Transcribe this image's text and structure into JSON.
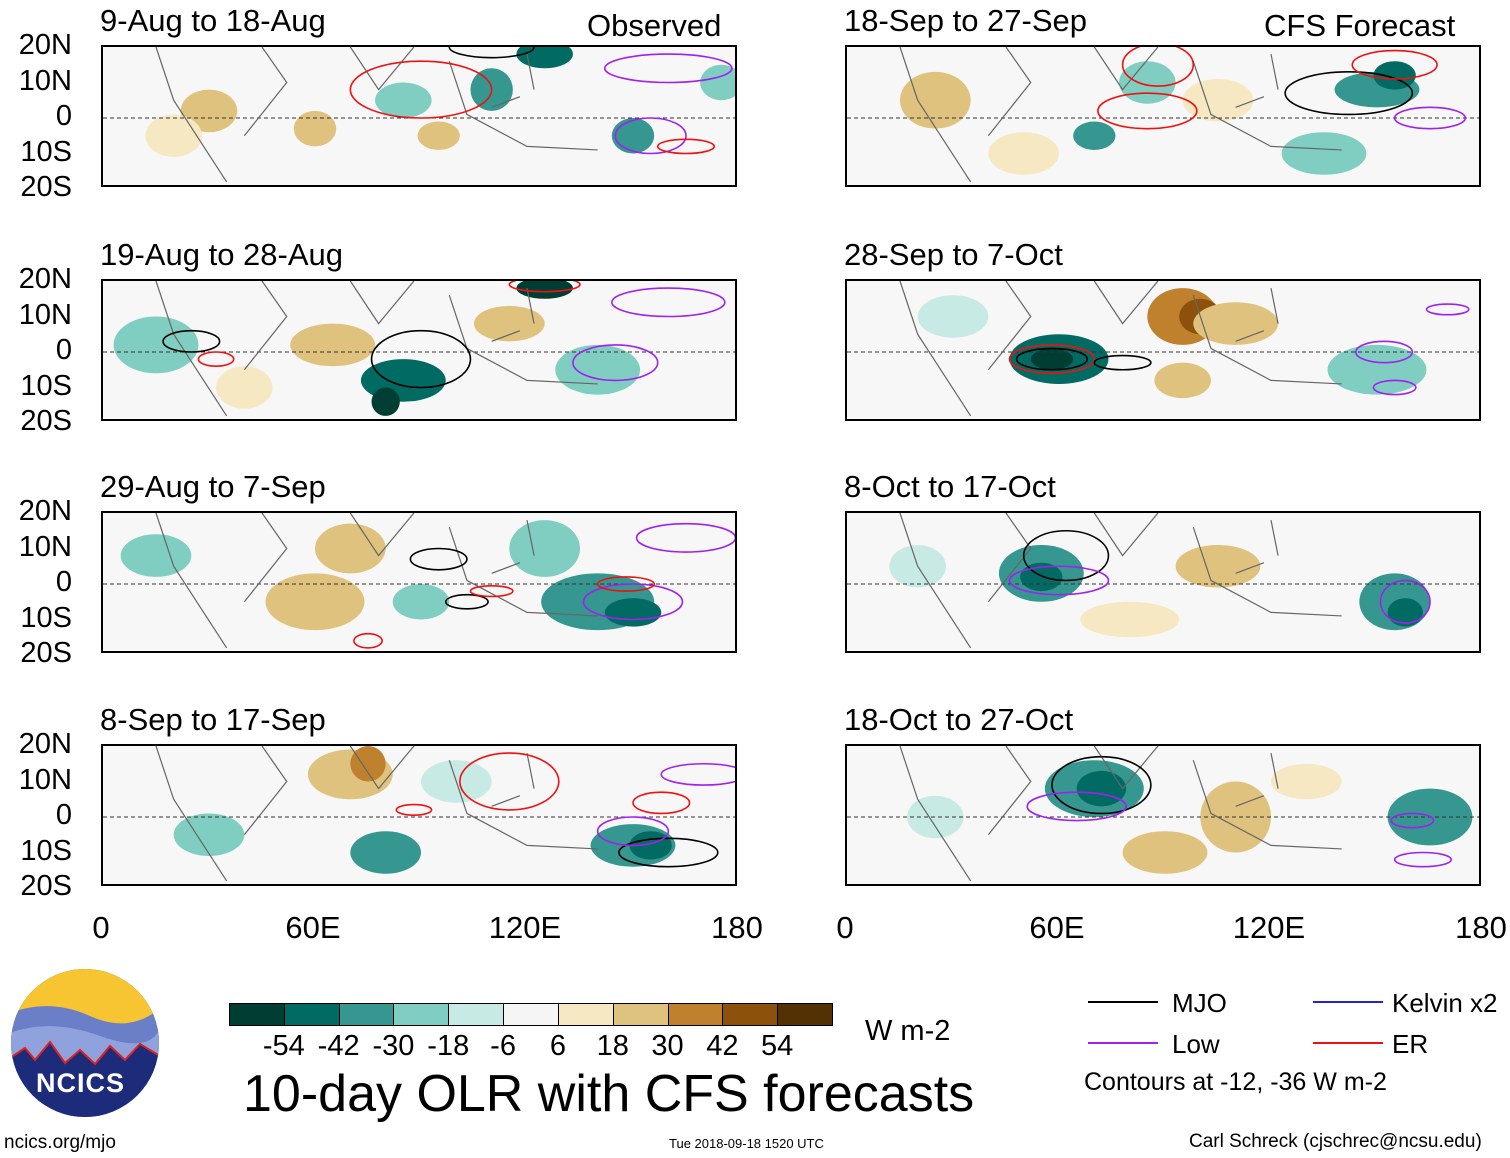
{
  "header": {
    "observed_label": "Observed",
    "forecast_label": "CFS Forecast"
  },
  "panels": [
    {
      "title": "9-Aug to 18-Aug",
      "group": "observed",
      "olr": [
        [
          30,
          2,
          8,
          6,
          24
        ],
        [
          60,
          -3,
          6,
          5,
          30
        ],
        [
          85,
          5,
          8,
          5,
          -18
        ],
        [
          110,
          8,
          6,
          6,
          -30
        ],
        [
          125,
          18,
          8,
          4,
          -42
        ],
        [
          95,
          -5,
          6,
          4,
          24
        ],
        [
          150,
          -5,
          6,
          5,
          -30
        ],
        [
          175,
          10,
          6,
          5,
          -18
        ],
        [
          20,
          -5,
          8,
          6,
          18
        ]
      ],
      "contours": [
        [
          90,
          8,
          20,
          8,
          "er"
        ],
        [
          155,
          -5,
          10,
          5,
          "low"
        ],
        [
          110,
          20,
          12,
          3,
          "mjo"
        ],
        [
          160,
          14,
          18,
          4,
          "low"
        ],
        [
          165,
          -8,
          8,
          2,
          "er"
        ]
      ]
    },
    {
      "title": "18-Sep to 27-Sep",
      "group": "forecast",
      "olr": [
        [
          25,
          5,
          10,
          8,
          24
        ],
        [
          70,
          -5,
          6,
          4,
          -30
        ],
        [
          85,
          10,
          8,
          6,
          -18
        ],
        [
          150,
          8,
          12,
          5,
          -30
        ],
        [
          155,
          12,
          6,
          4,
          -42
        ],
        [
          105,
          5,
          10,
          6,
          18
        ],
        [
          135,
          -10,
          12,
          6,
          -18
        ],
        [
          50,
          -10,
          10,
          6,
          12
        ]
      ],
      "contours": [
        [
          88,
          15,
          10,
          6,
          "er"
        ],
        [
          85,
          2,
          14,
          5,
          "er"
        ],
        [
          142,
          7,
          18,
          6,
          "mjo"
        ],
        [
          165,
          0,
          10,
          3,
          "low"
        ],
        [
          155,
          15,
          12,
          4,
          "er"
        ]
      ]
    },
    {
      "title": "19-Aug to 28-Aug",
      "group": "observed",
      "olr": [
        [
          15,
          2,
          12,
          8,
          -18
        ],
        [
          85,
          -8,
          12,
          6,
          -42
        ],
        [
          80,
          -14,
          4,
          4,
          -54
        ],
        [
          65,
          2,
          12,
          6,
          24
        ],
        [
          115,
          8,
          10,
          5,
          30
        ],
        [
          140,
          -5,
          12,
          7,
          -18
        ],
        [
          125,
          18,
          8,
          3,
          -54
        ],
        [
          40,
          -10,
          8,
          6,
          18
        ]
      ],
      "contours": [
        [
          25,
          3,
          8,
          3,
          "mjo"
        ],
        [
          90,
          -2,
          14,
          8,
          "mjo"
        ],
        [
          145,
          -3,
          12,
          5,
          "low"
        ],
        [
          160,
          14,
          16,
          4,
          "low"
        ],
        [
          125,
          19,
          10,
          2,
          "er"
        ],
        [
          32,
          -2,
          5,
          2,
          "er"
        ]
      ]
    },
    {
      "title": "28-Sep to 7-Oct",
      "group": "forecast",
      "olr": [
        [
          60,
          -2,
          14,
          7,
          -42
        ],
        [
          58,
          -2,
          6,
          3,
          -54
        ],
        [
          95,
          10,
          10,
          8,
          42
        ],
        [
          100,
          10,
          6,
          5,
          54
        ],
        [
          110,
          8,
          12,
          6,
          30
        ],
        [
          95,
          -8,
          8,
          5,
          24
        ],
        [
          150,
          -5,
          14,
          7,
          -18
        ],
        [
          30,
          10,
          10,
          6,
          -12
        ]
      ],
      "contours": [
        [
          58,
          -2,
          12,
          4,
          "er"
        ],
        [
          58,
          -2,
          10,
          3,
          "mjo"
        ],
        [
          78,
          -3,
          8,
          2,
          "mjo"
        ],
        [
          152,
          0,
          8,
          3,
          "low"
        ],
        [
          155,
          -10,
          6,
          2,
          "low"
        ],
        [
          170,
          12,
          6,
          1.5,
          "low"
        ]
      ]
    },
    {
      "title": "29-Aug to 7-Sep",
      "group": "observed",
      "olr": [
        [
          70,
          10,
          10,
          7,
          30
        ],
        [
          60,
          -5,
          14,
          8,
          24
        ],
        [
          90,
          -5,
          8,
          5,
          -18
        ],
        [
          140,
          -5,
          16,
          8,
          -30
        ],
        [
          150,
          -8,
          8,
          4,
          -42
        ],
        [
          15,
          8,
          10,
          6,
          -18
        ],
        [
          125,
          10,
          10,
          8,
          -18
        ]
      ],
      "contours": [
        [
          95,
          7,
          8,
          3,
          "mjo"
        ],
        [
          103,
          -5,
          6,
          2,
          "mjo"
        ],
        [
          150,
          -5,
          14,
          5,
          "low"
        ],
        [
          165,
          13,
          14,
          4,
          "low"
        ],
        [
          148,
          0,
          8,
          2,
          "er"
        ],
        [
          110,
          -2,
          6,
          1.5,
          "er"
        ],
        [
          75,
          -16,
          4,
          2,
          "er"
        ]
      ]
    },
    {
      "title": "8-Oct to 17-Oct",
      "group": "forecast",
      "olr": [
        [
          55,
          3,
          12,
          8,
          -30
        ],
        [
          55,
          2,
          6,
          4,
          -42
        ],
        [
          105,
          5,
          12,
          6,
          30
        ],
        [
          80,
          -10,
          14,
          5,
          18
        ],
        [
          155,
          -5,
          10,
          8,
          -30
        ],
        [
          158,
          -8,
          5,
          4,
          -42
        ],
        [
          20,
          5,
          8,
          6,
          -12
        ]
      ],
      "contours": [
        [
          62,
          8,
          12,
          7,
          "mjo"
        ],
        [
          60,
          1,
          14,
          4,
          "low"
        ],
        [
          158,
          -5,
          7,
          6,
          "low"
        ]
      ]
    },
    {
      "title": "8-Sep to 17-Sep",
      "group": "observed",
      "olr": [
        [
          70,
          12,
          12,
          7,
          30
        ],
        [
          75,
          15,
          5,
          5,
          42
        ],
        [
          80,
          -10,
          10,
          6,
          -30
        ],
        [
          150,
          -8,
          12,
          6,
          -30
        ],
        [
          155,
          -8,
          6,
          4,
          -42
        ],
        [
          30,
          -5,
          10,
          6,
          -18
        ],
        [
          100,
          10,
          10,
          6,
          -12
        ]
      ],
      "contours": [
        [
          115,
          10,
          14,
          8,
          "er"
        ],
        [
          158,
          4,
          8,
          3,
          "er"
        ],
        [
          160,
          -10,
          14,
          4,
          "mjo"
        ],
        [
          150,
          -4,
          10,
          4,
          "low"
        ],
        [
          170,
          12,
          12,
          3,
          "low"
        ],
        [
          88,
          2,
          5,
          1.5,
          "er"
        ]
      ]
    },
    {
      "title": "18-Oct to 27-Oct",
      "group": "forecast",
      "olr": [
        [
          70,
          8,
          14,
          8,
          -30
        ],
        [
          72,
          8,
          7,
          5,
          -42
        ],
        [
          110,
          0,
          10,
          10,
          30
        ],
        [
          90,
          -10,
          12,
          6,
          24
        ],
        [
          165,
          0,
          12,
          8,
          -30
        ],
        [
          25,
          0,
          8,
          6,
          -12
        ],
        [
          130,
          10,
          10,
          5,
          12
        ]
      ],
      "contours": [
        [
          72,
          9,
          14,
          8,
          "mjo"
        ],
        [
          65,
          3,
          14,
          4,
          "low"
        ],
        [
          160,
          -1,
          6,
          2,
          "low"
        ],
        [
          163,
          -12,
          8,
          2,
          "low"
        ]
      ]
    }
  ],
  "axes": {
    "lat_labels": [
      "20N",
      "10N",
      "0",
      "10S",
      "20S"
    ],
    "lon_labels": [
      "0",
      "60E",
      "120E",
      "180"
    ]
  },
  "colorbar": {
    "colors": [
      "#003d33",
      "#016b63",
      "#35978f",
      "#80cdc1",
      "#c7eae5",
      "#f5f5f5",
      "#f6e8c3",
      "#dfc27d",
      "#bf812d",
      "#8c510a",
      "#543005"
    ],
    "labels": [
      "-54",
      "-42",
      "-30",
      "-18",
      "-6",
      "6",
      "18",
      "30",
      "42",
      "54"
    ],
    "units": "W m-2"
  },
  "legend": {
    "items": [
      {
        "label": "MJO",
        "color": "#000000",
        "key": "mjo"
      },
      {
        "label": "Kelvin x2",
        "color": "#2222dd",
        "key": "kelvin"
      },
      {
        "label": "Low",
        "color": "#a020f0",
        "key": "low"
      },
      {
        "label": "ER",
        "color": "#ee1111",
        "key": "er"
      }
    ],
    "note": "Contours at -12, -36 W m-2"
  },
  "footer": {
    "title": "10-day OLR with CFS forecasts",
    "logo_text": "NCICS",
    "url": "ncics.org/mjo",
    "timestamp": "Tue 2018-09-18 1520 UTC",
    "credit": "Carl Schreck (cjschrec@ncsu.edu)"
  }
}
